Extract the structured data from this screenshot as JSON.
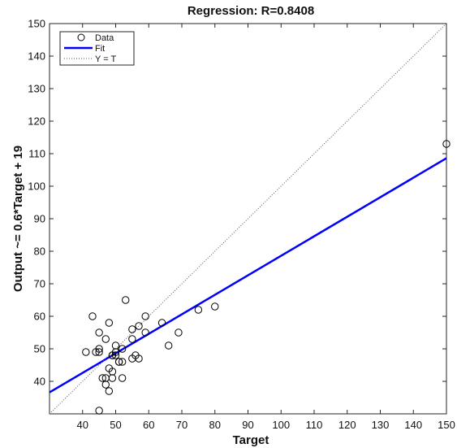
{
  "chart_data": {
    "type": "scatter",
    "title": "Regression: R=0.8408",
    "xlabel": "Target",
    "ylabel": "Output ~= 0.6*Target + 19",
    "xlim": [
      30,
      150
    ],
    "ylim": [
      30,
      150
    ],
    "xticks": [
      40,
      50,
      60,
      70,
      80,
      90,
      100,
      110,
      120,
      130,
      140,
      150
    ],
    "yticks": [
      40,
      50,
      60,
      70,
      80,
      90,
      100,
      110,
      120,
      130,
      140,
      150
    ],
    "grid": false,
    "legend_position": "top-left",
    "legend": [
      "Data",
      "Fit",
      "Y = T"
    ],
    "series": [
      {
        "name": "Data",
        "marker": "open-circle",
        "color": "#000000",
        "points": [
          [
            41,
            49
          ],
          [
            43,
            60
          ],
          [
            44,
            49
          ],
          [
            45,
            55
          ],
          [
            45,
            49
          ],
          [
            45,
            50
          ],
          [
            45,
            31
          ],
          [
            46,
            41
          ],
          [
            47,
            53
          ],
          [
            47,
            41
          ],
          [
            47,
            39
          ],
          [
            48,
            58
          ],
          [
            48,
            44
          ],
          [
            48,
            37
          ],
          [
            49,
            48
          ],
          [
            49,
            48
          ],
          [
            49,
            43
          ],
          [
            49,
            41
          ],
          [
            50,
            51
          ],
          [
            50,
            48
          ],
          [
            50,
            49
          ],
          [
            51,
            46
          ],
          [
            51,
            46
          ],
          [
            52,
            50
          ],
          [
            52,
            46
          ],
          [
            52,
            41
          ],
          [
            53,
            65
          ],
          [
            55,
            56
          ],
          [
            55,
            53
          ],
          [
            55,
            47
          ],
          [
            56,
            48
          ],
          [
            57,
            57
          ],
          [
            57,
            47
          ],
          [
            59,
            60
          ],
          [
            59,
            55
          ],
          [
            64,
            58
          ],
          [
            66,
            51
          ],
          [
            69,
            55
          ],
          [
            75,
            62
          ],
          [
            80,
            63
          ],
          [
            150,
            113
          ]
        ]
      },
      {
        "name": "Fit",
        "type": "line",
        "color": "#0000ff",
        "slope": 0.6,
        "intercept": 18.6
      },
      {
        "name": "Y = T",
        "type": "line",
        "style": "dotted",
        "color": "#555555",
        "slope": 1,
        "intercept": 0
      }
    ]
  }
}
